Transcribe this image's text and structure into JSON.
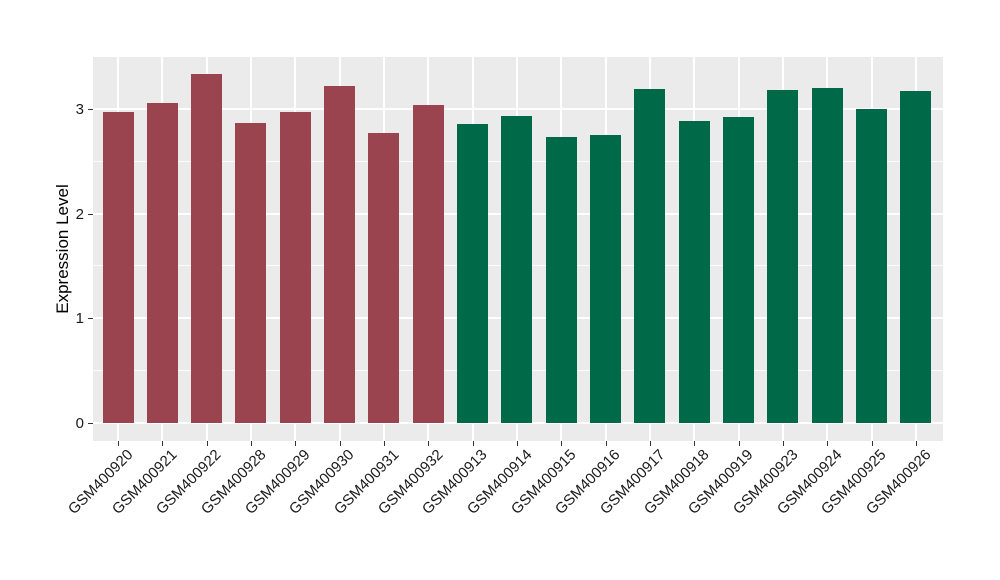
{
  "chart_data": {
    "type": "bar",
    "title": "",
    "xlabel": "",
    "ylabel": "Expression Level",
    "ylim": [
      0,
      3.5
    ],
    "yticks": [
      0,
      1,
      2,
      3
    ],
    "minor_yticks": [
      0.5,
      1.5,
      2.5,
      3.5
    ],
    "grid": "on",
    "legend_position": "none",
    "panel_background": "#EBEBEB",
    "gridline_color": "#FFFFFF",
    "tick_color": "#333333",
    "label_color": "#1a1a1a",
    "groups": [
      {
        "name": "maroon-group",
        "color": "#9A4450"
      },
      {
        "name": "green-group",
        "color": "#006A48"
      }
    ],
    "bars": [
      {
        "label": "GSM400920",
        "value": 2.97,
        "group": 0
      },
      {
        "label": "GSM400921",
        "value": 3.06,
        "group": 0
      },
      {
        "label": "GSM400922",
        "value": 3.33,
        "group": 0
      },
      {
        "label": "GSM400928",
        "value": 2.87,
        "group": 0
      },
      {
        "label": "GSM400929",
        "value": 2.97,
        "group": 0
      },
      {
        "label": "GSM400930",
        "value": 3.22,
        "group": 0
      },
      {
        "label": "GSM400931",
        "value": 2.77,
        "group": 0
      },
      {
        "label": "GSM400932",
        "value": 3.04,
        "group": 0
      },
      {
        "label": "GSM400913",
        "value": 2.86,
        "group": 1
      },
      {
        "label": "GSM400914",
        "value": 2.93,
        "group": 1
      },
      {
        "label": "GSM400915",
        "value": 2.73,
        "group": 1
      },
      {
        "label": "GSM400916",
        "value": 2.75,
        "group": 1
      },
      {
        "label": "GSM400917",
        "value": 3.19,
        "group": 1
      },
      {
        "label": "GSM400918",
        "value": 2.88,
        "group": 1
      },
      {
        "label": "GSM400919",
        "value": 2.92,
        "group": 1
      },
      {
        "label": "GSM400923",
        "value": 3.18,
        "group": 1
      },
      {
        "label": "GSM400924",
        "value": 3.2,
        "group": 1
      },
      {
        "label": "GSM400925",
        "value": 3.0,
        "group": 1
      },
      {
        "label": "GSM400926",
        "value": 3.17,
        "group": 1
      }
    ]
  }
}
